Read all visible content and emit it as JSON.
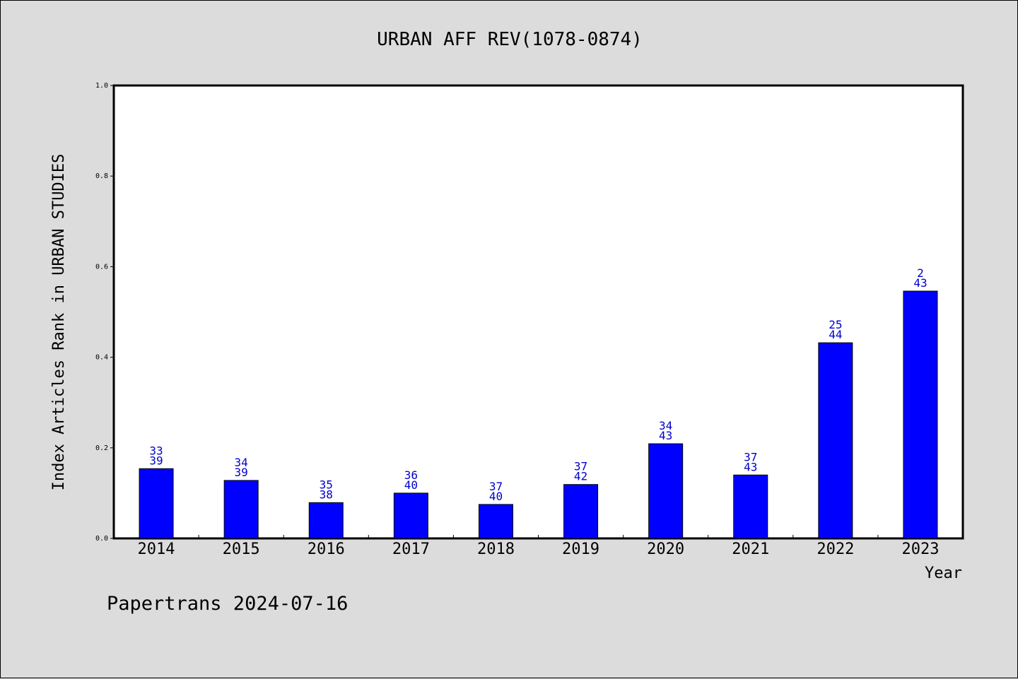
{
  "chart_data": {
    "type": "bar",
    "title": "URBAN AFF REV(1078-0874)",
    "xlabel": "Year",
    "ylabel": "Index Articles Rank in URBAN STUDIES",
    "ylim": [
      0,
      1.0
    ],
    "yticks": [
      "0.0",
      "0.2",
      "0.4",
      "0.6",
      "0.8",
      "1.0"
    ],
    "categories": [
      "2014",
      "2015",
      "2016",
      "2017",
      "2018",
      "2019",
      "2020",
      "2021",
      "2022",
      "2023"
    ],
    "values": [
      0.154,
      0.128,
      0.079,
      0.1,
      0.075,
      0.119,
      0.209,
      0.14,
      0.432,
      0.546
    ],
    "rank_labels": [
      "33",
      "34",
      "35",
      "36",
      "37",
      "37",
      "34",
      "37",
      "25",
      "2"
    ],
    "total_labels": [
      "39",
      "39",
      "38",
      "40",
      "40",
      "42",
      "43",
      "43",
      "44",
      "43"
    ],
    "bar_color": "#0000ff",
    "label_color": "#0000cc",
    "grid": false,
    "legend": "none"
  },
  "footer": "Papertrans 2024-07-16"
}
